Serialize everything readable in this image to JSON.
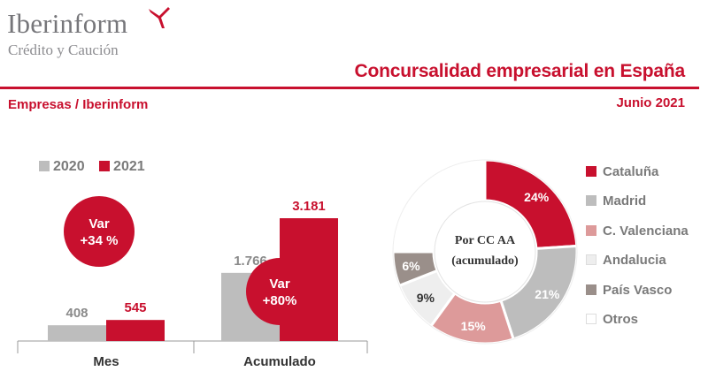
{
  "header": {
    "brand": "Iberinform",
    "brand_subtitle": "Crédito y Caución",
    "title": "Concursalidad empresarial en España",
    "source_label": "Empresas / Iberinform",
    "period": "Junio 2021"
  },
  "colors": {
    "accent": "#c8102e",
    "series_2020": "#bdbdbd",
    "series_2021": "#c8102e",
    "text_gray": "#7a7a7a"
  },
  "icons": {
    "logo": "red-arrow-mark-icon"
  },
  "chart_data": [
    {
      "type": "bar",
      "categories": [
        "Mes",
        "Acumulado"
      ],
      "series": [
        {
          "name": "2020",
          "values": [
            408,
            1766
          ],
          "labels": [
            "408",
            "1.766"
          ]
        },
        {
          "name": "2021",
          "values": [
            545,
            3181
          ],
          "labels": [
            "545",
            "3.181"
          ]
        }
      ],
      "annotations": [
        {
          "category": "Mes",
          "line1": "Var",
          "line2": "+34 %"
        },
        {
          "category": "Acumulado",
          "line1": "Var",
          "line2": "+80%"
        }
      ],
      "ylim": [
        0,
        3181
      ],
      "legend_position": "top-left",
      "grid": false
    },
    {
      "type": "pie",
      "center_label": [
        "Por CC AA",
        "(acumulado)"
      ],
      "slices": [
        {
          "label": "Cataluña",
          "value": 24,
          "text": "24%",
          "color": "#c8102e"
        },
        {
          "label": "Madrid",
          "value": 21,
          "text": "21%",
          "color": "#bdbdbd"
        },
        {
          "label": "C. Valenciana",
          "value": 15,
          "text": "15%",
          "color": "#dd9a9a"
        },
        {
          "label": "Andalucia",
          "value": 9,
          "text": "9%",
          "color": "#eeeeee"
        },
        {
          "label": "País Vasco",
          "value": 6,
          "text": "6%",
          "color": "#9a8f8a"
        },
        {
          "label": "Otros",
          "value": 25,
          "text": "",
          "color": "#ffffff"
        }
      ],
      "legend_position": "right"
    }
  ]
}
